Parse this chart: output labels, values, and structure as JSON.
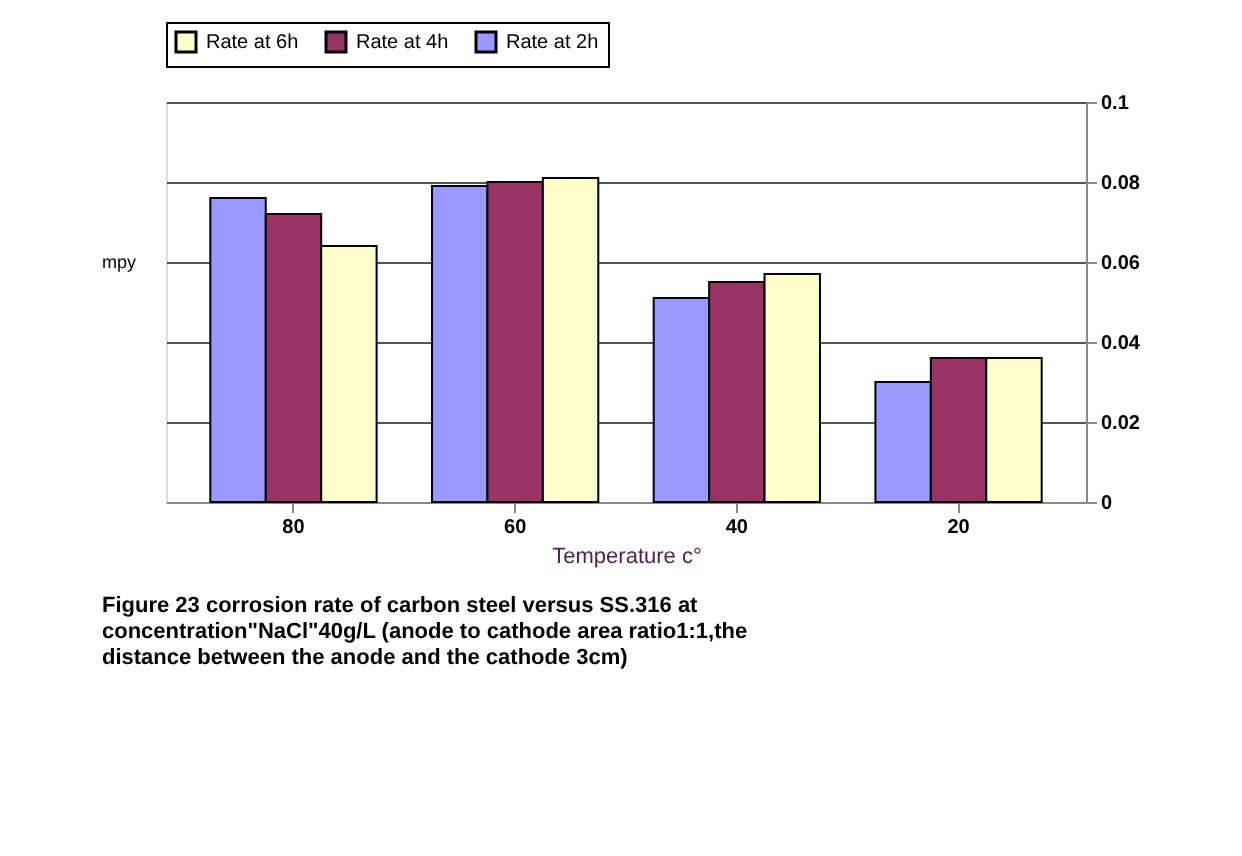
{
  "chart_data": {
    "type": "bar",
    "categories": [
      "80",
      "60",
      "40",
      "20"
    ],
    "series": [
      {
        "name": "Rate at 2h",
        "color": "#9999ff",
        "values": [
          0.076,
          0.079,
          0.051,
          0.03
        ]
      },
      {
        "name": "Rate at 4h",
        "color": "#993366",
        "values": [
          0.072,
          0.08,
          0.055,
          0.036
        ]
      },
      {
        "name": "Rate at 6h",
        "color": "#ffffcc",
        "values": [
          0.064,
          0.081,
          0.057,
          0.036
        ]
      }
    ],
    "ylim": [
      0,
      0.1
    ],
    "yticks": [
      0,
      0.02,
      0.04,
      0.06,
      0.08,
      0.1
    ],
    "grid": "y",
    "legend": "top",
    "ylabel": "mpy",
    "xlabel": "Temperature  c°",
    "annotations": [
      "Figure 23  corrosion rate of carbon steel versus SS.316 at\nconcentration\"NaCl\"40g/L  (anode to cathode area ratio1:1,the\ndistance between the anode and the cathode 3cm)"
    ]
  }
}
